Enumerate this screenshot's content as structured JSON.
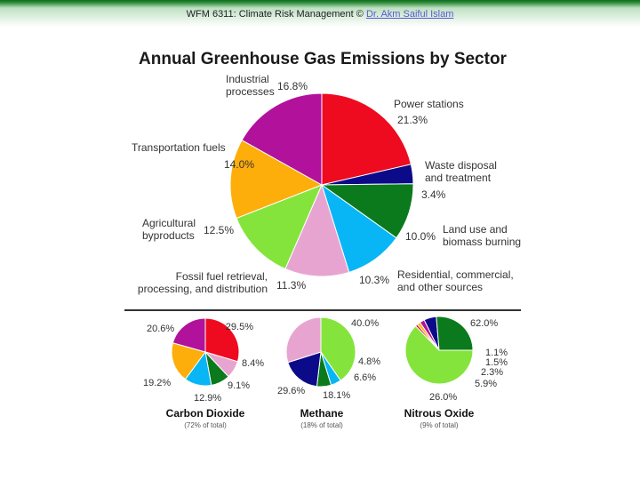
{
  "header": {
    "course": "WFM 6311: Climate Risk Management ©",
    "author_link": "Dr. Akm Saiful Islam"
  },
  "colors": {
    "purple": "#b2119c",
    "red": "#ee0a1f",
    "navy": "#0b0b8a",
    "green": "#0b7a1c",
    "lightblue": "#08b6f6",
    "pink": "#e8a4d0",
    "lightgreen": "#84e43b",
    "orange": "#fdae0b"
  },
  "chart_data": [
    {
      "type": "pie",
      "title": "Annual Greenhouse Gas Emissions by Sector",
      "slices": [
        {
          "label": [
            "Power stations"
          ],
          "value": 21.3,
          "value_text": "21.3%",
          "color": "red"
        },
        {
          "label": [
            "Waste disposal",
            "and treatment"
          ],
          "value": 3.4,
          "value_text": "3.4%",
          "color": "navy"
        },
        {
          "label": [
            "Land use and",
            "biomass burning"
          ],
          "value": 10.0,
          "value_text": "10.0%",
          "color": "green"
        },
        {
          "label": [
            "Residential, commercial,",
            "and other sources"
          ],
          "value": 10.3,
          "value_text": "10.3%",
          "color": "lightblue"
        },
        {
          "label": [
            "Fossil fuel retrieval,",
            "processing, and distribution"
          ],
          "value": 11.3,
          "value_text": "11.3%",
          "color": "pink"
        },
        {
          "label": [
            "Agricultural",
            "byproducts"
          ],
          "value": 12.5,
          "value_text": "12.5%",
          "color": "lightgreen"
        },
        {
          "label": [
            "Transportation fuels"
          ],
          "value": 14.0,
          "value_text": "14.0%",
          "color": "orange"
        },
        {
          "label": [
            "Industrial",
            "processes"
          ],
          "value": 16.8,
          "value_text": "16.8%",
          "color": "purple"
        }
      ]
    },
    {
      "type": "pie",
      "title": "Carbon Dioxide",
      "subtitle": "(72% of total)",
      "slices": [
        {
          "value": 29.5,
          "value_text": "29.5%",
          "color": "red"
        },
        {
          "value": 8.4,
          "value_text": "8.4%",
          "color": "pink"
        },
        {
          "value": 9.1,
          "value_text": "9.1%",
          "color": "green"
        },
        {
          "value": 12.9,
          "value_text": "12.9%",
          "color": "lightblue"
        },
        {
          "value": 19.2,
          "value_text": "19.2%",
          "color": "orange"
        },
        {
          "value": 20.6,
          "value_text": "20.6%",
          "color": "purple"
        }
      ]
    },
    {
      "type": "pie",
      "title": "Methane",
      "subtitle": "(18% of total)",
      "slices": [
        {
          "value": 40.0,
          "value_text": "40.0%",
          "color": "lightgreen"
        },
        {
          "value": 4.8,
          "value_text": "4.8%",
          "color": "lightblue"
        },
        {
          "value": 6.6,
          "value_text": "6.6%",
          "color": "green"
        },
        {
          "value": 18.1,
          "value_text": "18.1%",
          "color": "navy"
        },
        {
          "value": 29.6,
          "value_text": "29.6%",
          "color": "pink"
        }
      ]
    },
    {
      "type": "pie",
      "title": "Nitrous Oxide",
      "subtitle": "(9% of total)",
      "slices": [
        {
          "value": 62.0,
          "value_text": "62.0%",
          "color": "lightgreen"
        },
        {
          "value": 1.1,
          "value_text": "1.1%",
          "color": "red"
        },
        {
          "value": 1.5,
          "value_text": "1.5%",
          "color": "orange"
        },
        {
          "value": 2.3,
          "value_text": "2.3%",
          "color": "purple"
        },
        {
          "value": 5.9,
          "value_text": "5.9%",
          "color": "navy"
        },
        {
          "value": 26.0,
          "value_text": "26.0%",
          "color": "green"
        }
      ]
    }
  ]
}
